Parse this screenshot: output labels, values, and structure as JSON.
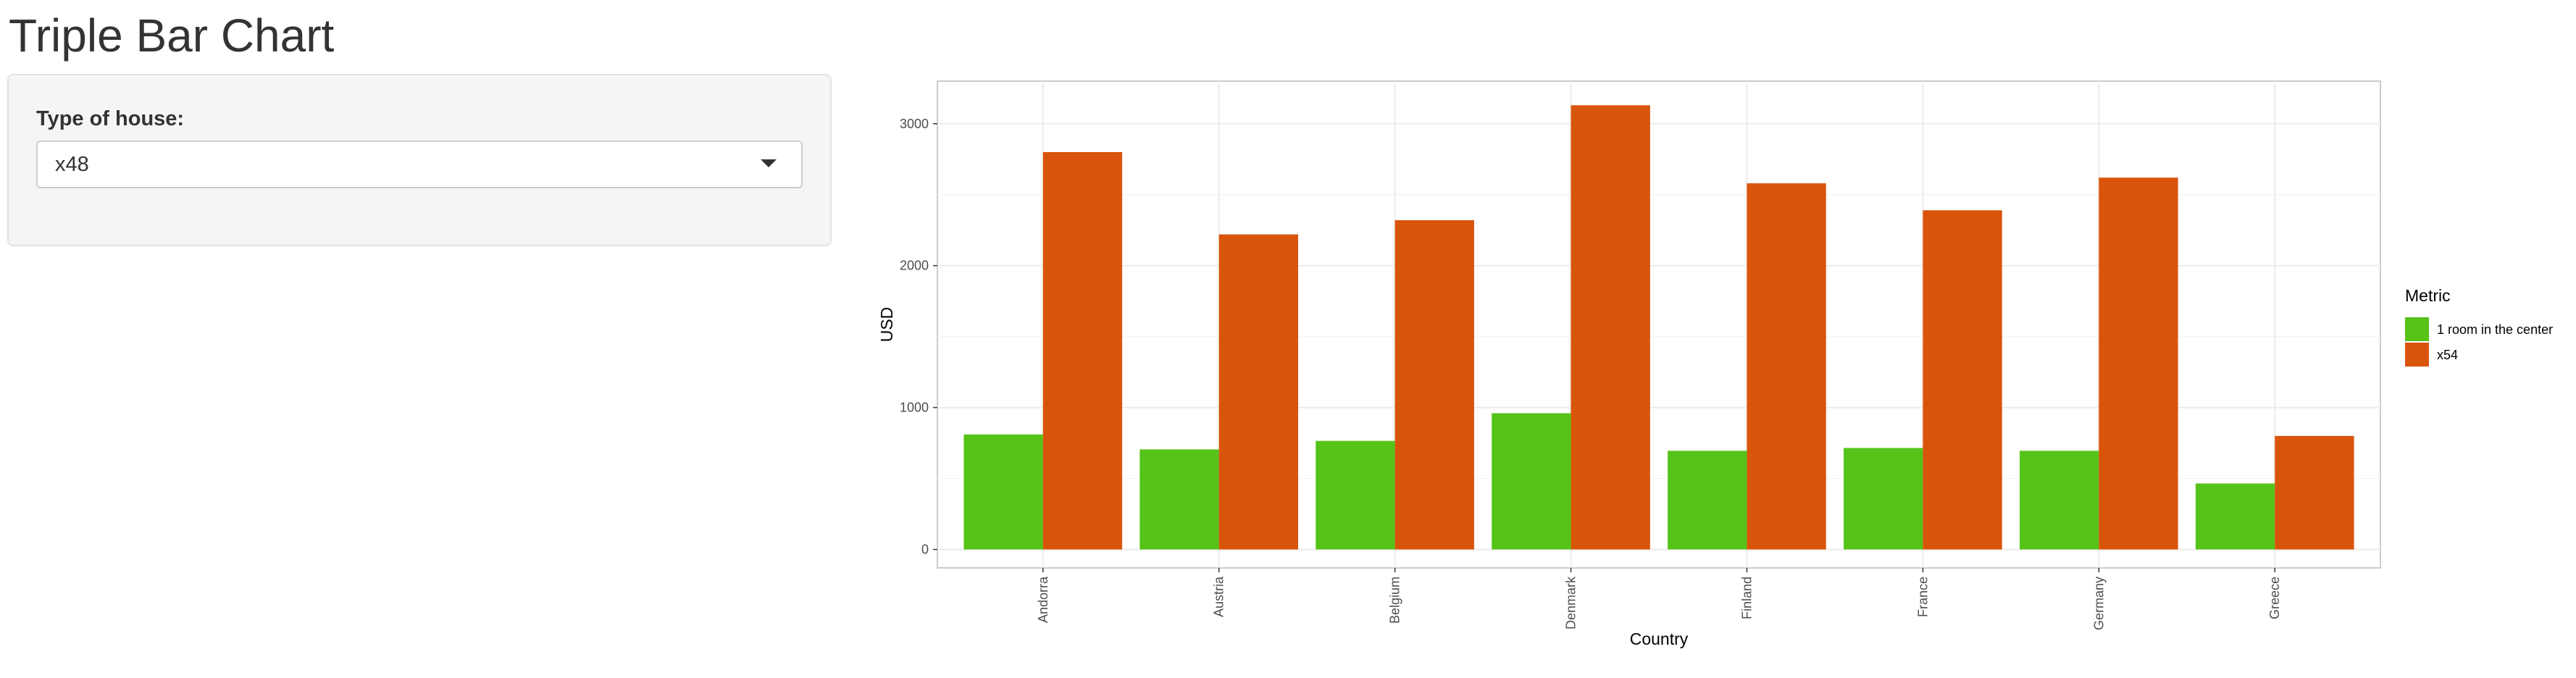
{
  "page": {
    "title": "Triple Bar Chart"
  },
  "sidebar": {
    "select_label": "Type of house:",
    "select_value": "x48",
    "caret_icon": "chevron-down-icon"
  },
  "chart_data": {
    "type": "bar",
    "categories": [
      "Andorra",
      "Austria",
      "Belgium",
      "Denmark",
      "Finland",
      "France",
      "Germany",
      "Greece"
    ],
    "series": [
      {
        "name": "1 room in the center",
        "color": "#56c318",
        "values": [
          810,
          705,
          765,
          960,
          695,
          715,
          695,
          465
        ]
      },
      {
        "name": "x54",
        "color": "#d9550b",
        "values": [
          2800,
          2220,
          2320,
          3130,
          2580,
          2390,
          2620,
          800
        ]
      }
    ],
    "title": "",
    "xlabel": "Country",
    "ylabel": "USD",
    "ylim": [
      -130,
      3300
    ],
    "yticks": [
      0,
      1000,
      2000,
      3000
    ],
    "grid": true,
    "legend_title": "Metric",
    "legend_position": "right"
  }
}
